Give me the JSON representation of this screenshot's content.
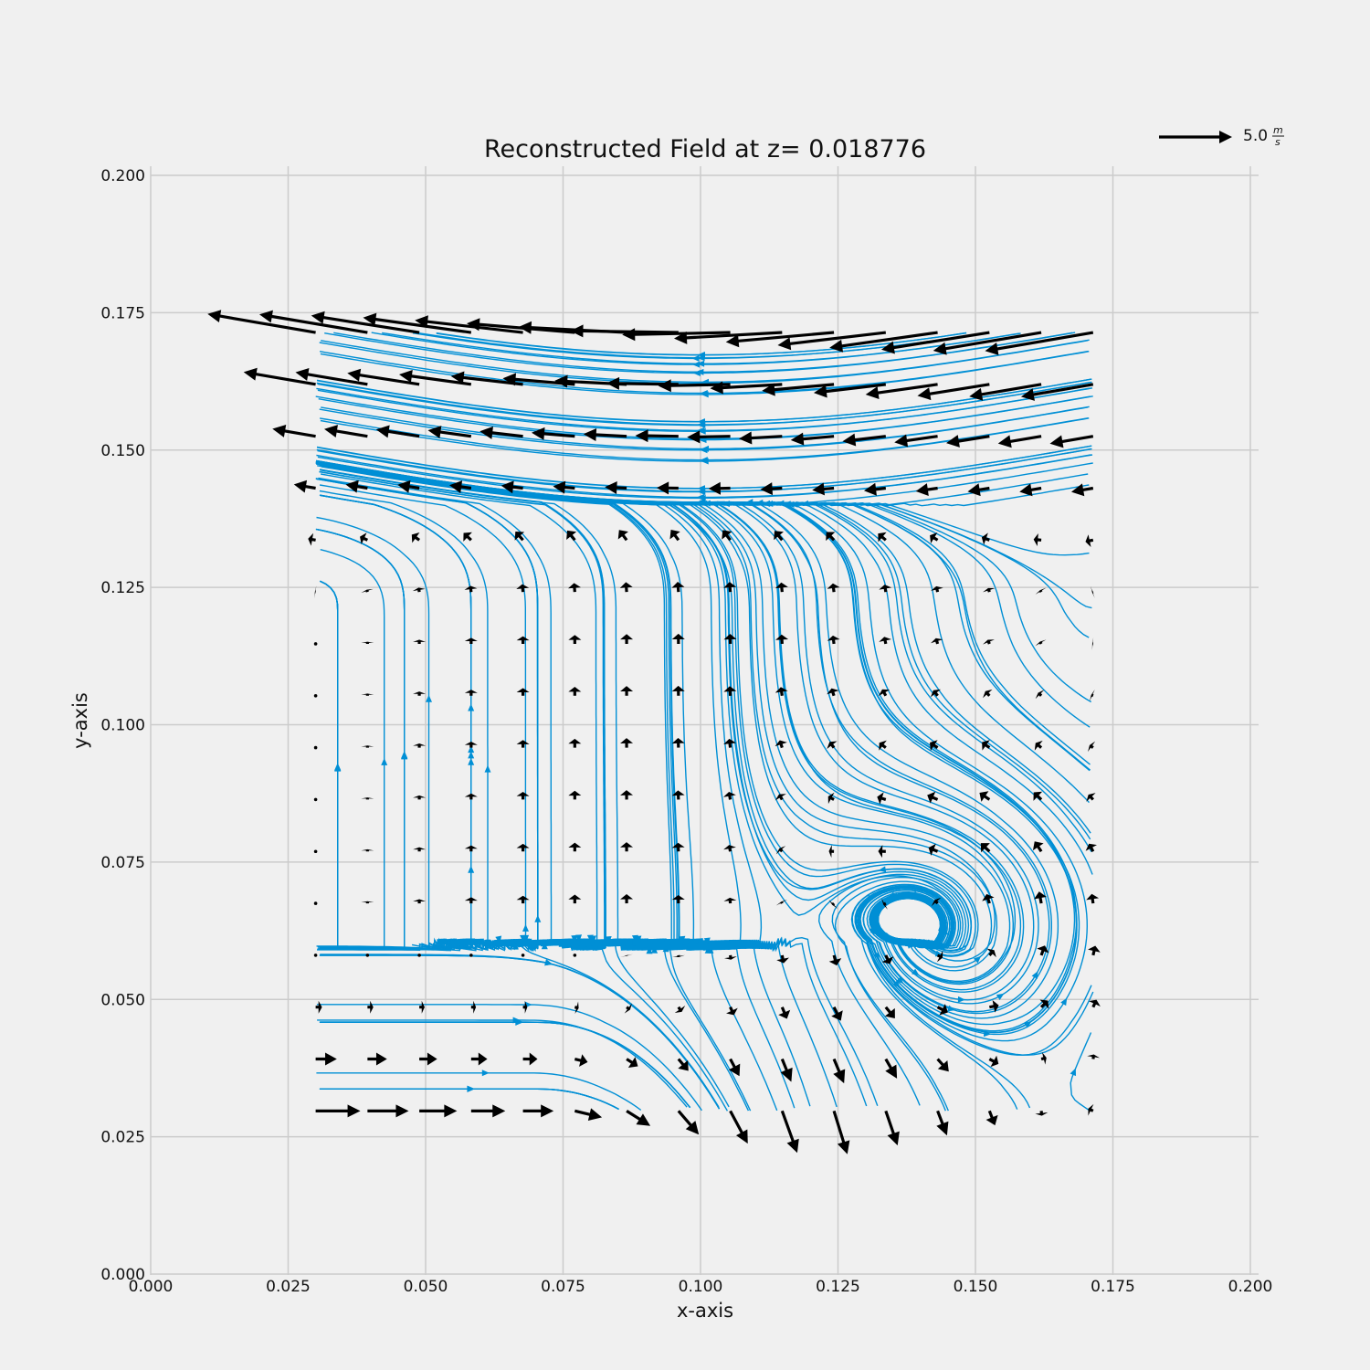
{
  "chart_data": {
    "type": "quiver",
    "title": "Reconstructed Field at z= 0.018776",
    "xlabel": "x-axis",
    "ylabel": "y-axis",
    "xlim": [
      0.0,
      0.2
    ],
    "ylim": [
      0.0,
      0.2
    ],
    "grid": true,
    "x_ticks": [
      "0.000",
      "0.025",
      "0.050",
      "0.075",
      "0.100",
      "0.125",
      "0.150",
      "0.175",
      "0.200"
    ],
    "y_ticks": [
      "0.000",
      "0.025",
      "0.050",
      "0.075",
      "0.100",
      "0.125",
      "0.150",
      "0.175",
      "0.200"
    ],
    "quiver_key": {
      "value": 5.0,
      "label": "5.0",
      "unit_num": "m",
      "unit_den": "s"
    },
    "vector_grid": {
      "x_range": [
        0.03,
        0.1714
      ],
      "y_range": [
        0.0297,
        0.1714
      ],
      "n": 16,
      "vortex_center": [
        0.146,
        0.064
      ]
    },
    "colors": {
      "quiver": "#000000",
      "streamlines": "#008fd5",
      "grid": "#cbcbcb",
      "background": "#f0f0f0"
    }
  }
}
